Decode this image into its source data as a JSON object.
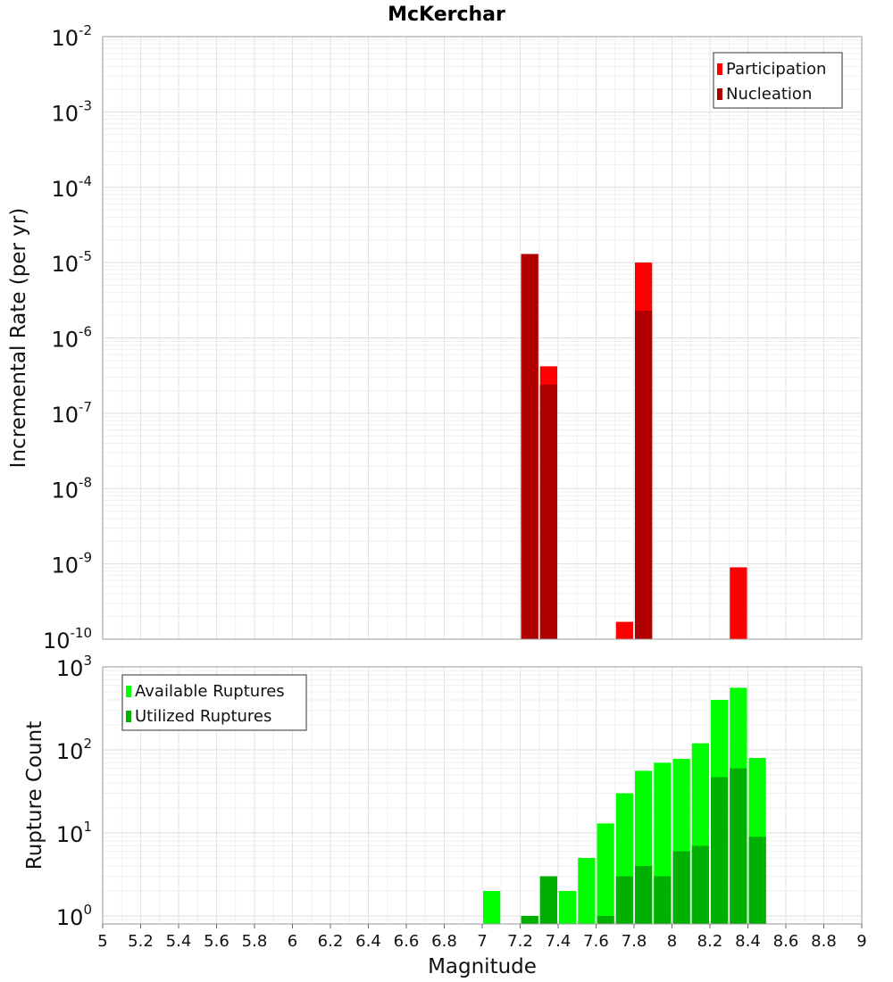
{
  "chart_data": [
    {
      "type": "bar",
      "title": "McKerchar",
      "xlabel": "",
      "ylabel": "Incremental Rate (per yr)",
      "yscale": "log",
      "ylim": [
        1e-10,
        0.01
      ],
      "xlim": [
        5,
        9
      ],
      "bar_width": 0.1,
      "grid": true,
      "legend_position": "top-right",
      "y_tick_labels": [
        {
          "base": "10",
          "exp": "-10"
        },
        {
          "base": "10",
          "exp": "-9"
        },
        {
          "base": "10",
          "exp": "-8"
        },
        {
          "base": "10",
          "exp": "-7"
        },
        {
          "base": "10",
          "exp": "-6"
        },
        {
          "base": "10",
          "exp": "-5"
        },
        {
          "base": "10",
          "exp": "-4"
        },
        {
          "base": "10",
          "exp": "-3"
        },
        {
          "base": "10",
          "exp": "-2"
        }
      ],
      "series": [
        {
          "name": "Participation",
          "color": "#ff0000",
          "x": [
            7.25,
            7.35,
            7.75,
            7.85,
            8.35
          ],
          "values": [
            1.3e-05,
            4.2e-07,
            1.7e-10,
            1e-05,
            9e-10
          ]
        },
        {
          "name": "Nucleation",
          "color": "#b00000",
          "x": [
            7.25,
            7.35,
            7.85
          ],
          "values": [
            1.3e-05,
            2.4e-07,
            2.3e-06
          ]
        }
      ]
    },
    {
      "type": "bar",
      "xlabel": "Magnitude",
      "ylabel": "Rupture Count",
      "yscale": "log",
      "ylim": [
        0.8,
        1000
      ],
      "xlim": [
        5,
        9
      ],
      "bar_width": 0.1,
      "grid": true,
      "legend_position": "top-left",
      "x_tick_labels": [
        "5",
        "5.2",
        "5.4",
        "5.6",
        "5.8",
        "6",
        "6.2",
        "6.4",
        "6.6",
        "6.8",
        "7",
        "7.2",
        "7.4",
        "7.6",
        "7.8",
        "8",
        "8.2",
        "8.4",
        "8.6",
        "8.8",
        "9"
      ],
      "y_tick_labels": [
        {
          "base": "10",
          "exp": "0"
        },
        {
          "base": "10",
          "exp": "1"
        },
        {
          "base": "10",
          "exp": "2"
        },
        {
          "base": "10",
          "exp": "3"
        }
      ],
      "series": [
        {
          "name": "Available Ruptures",
          "color": "#00ff00",
          "x": [
            7.05,
            7.25,
            7.35,
            7.45,
            7.55,
            7.65,
            7.75,
            7.85,
            7.95,
            8.05,
            8.15,
            8.25,
            8.35,
            8.45
          ],
          "values": [
            2,
            1,
            3,
            2,
            5,
            13,
            30,
            56,
            70,
            78,
            120,
            400,
            560,
            80
          ]
        },
        {
          "name": "Utilized Ruptures",
          "color": "#00b000",
          "x": [
            7.25,
            7.35,
            7.65,
            7.75,
            7.85,
            7.95,
            8.05,
            8.15,
            8.25,
            8.35,
            8.45
          ],
          "values": [
            1,
            3,
            1,
            3,
            4,
            3,
            6,
            7,
            47,
            60,
            9
          ]
        }
      ]
    }
  ]
}
